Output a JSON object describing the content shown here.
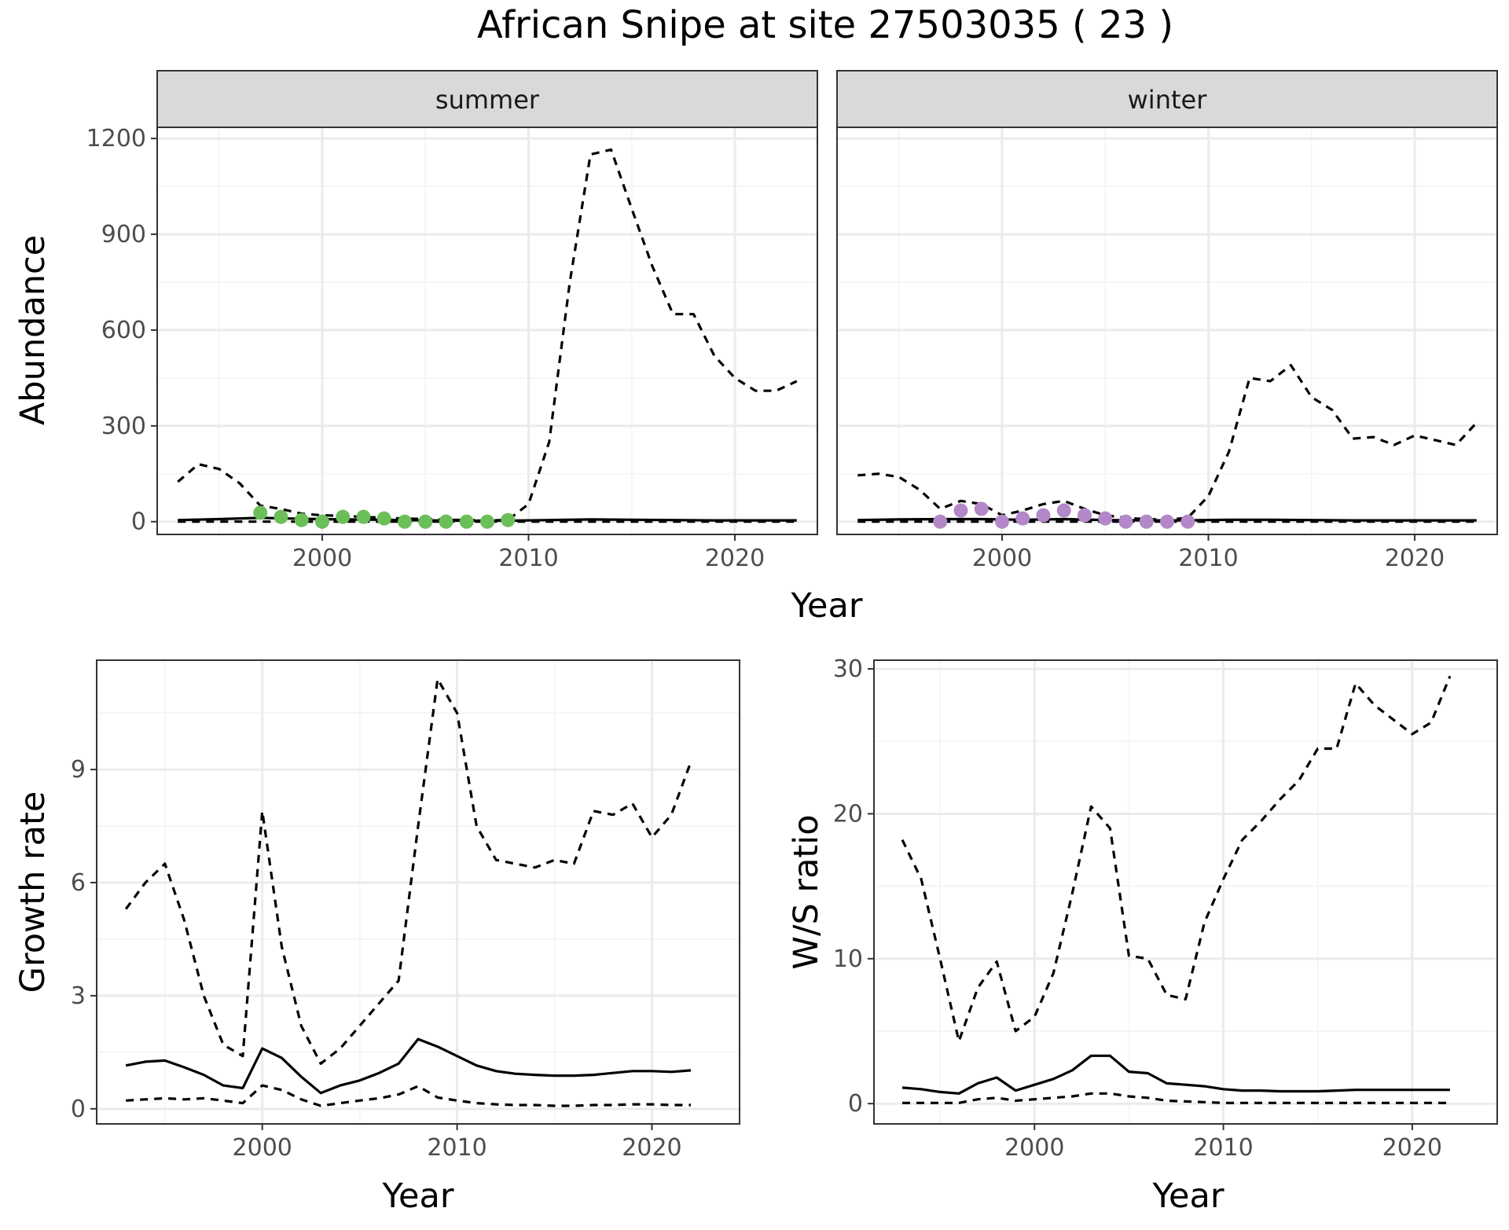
{
  "title": "African Snipe at site 27503035 ( 23 )",
  "colors": {
    "summer_points": "#6BBF59",
    "winter_points": "#B388C9",
    "line": "#000000",
    "strip_bg": "#D9D9D9",
    "grid_major": "#EBEBEB",
    "grid_minor": "#F5F5F5"
  },
  "chart_data": [
    {
      "id": "abundance",
      "type": "line",
      "facets": [
        "summer",
        "winter"
      ],
      "xlabel": "Year",
      "ylabel": "Abundance",
      "xlim": [
        1992,
        2024
      ],
      "ylim": [
        -40,
        1235
      ],
      "xticks": [
        2000,
        2010,
        2020
      ],
      "yticks": [
        0,
        300,
        600,
        900,
        1200
      ],
      "grid": true,
      "panels": {
        "summer": {
          "mean": {
            "x": [
              1993,
              1995,
              1997,
              1999,
              2001,
              2003,
              2005,
              2007,
              2009,
              2011,
              2013,
              2015,
              2017,
              2019,
              2021,
              2023
            ],
            "y": [
              5,
              8,
              12,
              9,
              7,
              6,
              4,
              3,
              3,
              5,
              7,
              6,
              5,
              4,
              4,
              4
            ]
          },
          "lower": {
            "x": [
              1993,
              1996,
              1999,
              2002,
              2005,
              2008,
              2011,
              2014,
              2017,
              2020,
              2023
            ],
            "y": [
              0,
              0,
              0,
              0,
              0,
              0,
              0,
              0,
              0,
              0,
              0
            ]
          },
          "upper": {
            "x": [
              1993,
              1994,
              1995,
              1996,
              1997,
              1998,
              1999,
              2000,
              2001,
              2002,
              2003,
              2004,
              2005,
              2006,
              2007,
              2008,
              2009,
              2010,
              2011,
              2012,
              2013,
              2014,
              2015,
              2016,
              2017,
              2018,
              2019,
              2020,
              2021,
              2022,
              2023
            ],
            "y": [
              125,
              180,
              165,
              120,
              50,
              40,
              25,
              20,
              18,
              15,
              12,
              10,
              8,
              6,
              5,
              4,
              5,
              55,
              250,
              750,
              1150,
              1165,
              980,
              800,
              650,
              650,
              520,
              450,
              410,
              410,
              440
            ]
          },
          "points": {
            "x": [
              1997,
              1998,
              1999,
              2000,
              2001,
              2002,
              2003,
              2004,
              2005,
              2006,
              2007,
              2008,
              2009
            ],
            "y": [
              28,
              15,
              5,
              0,
              15,
              15,
              10,
              0,
              0,
              0,
              0,
              0,
              5
            ]
          }
        },
        "winter": {
          "mean": {
            "x": [
              1993,
              1995,
              1997,
              1999,
              2001,
              2003,
              2005,
              2007,
              2009,
              2011,
              2013,
              2015,
              2017,
              2019,
              2021,
              2023
            ],
            "y": [
              5,
              7,
              8,
              8,
              6,
              8,
              5,
              4,
              4,
              6,
              6,
              5,
              4,
              4,
              4,
              4
            ]
          },
          "lower": {
            "x": [
              1993,
              1996,
              1999,
              2002,
              2005,
              2008,
              2011,
              2014,
              2017,
              2020,
              2023
            ],
            "y": [
              0,
              0,
              0,
              0,
              0,
              0,
              0,
              0,
              0,
              0,
              0
            ]
          },
          "upper": {
            "x": [
              1993,
              1994,
              1995,
              1996,
              1997,
              1998,
              1999,
              2000,
              2001,
              2002,
              2003,
              2004,
              2005,
              2006,
              2007,
              2008,
              2009,
              2010,
              2011,
              2012,
              2013,
              2014,
              2015,
              2016,
              2017,
              2018,
              2019,
              2020,
              2021,
              2022,
              2023
            ],
            "y": [
              145,
              150,
              140,
              100,
              40,
              65,
              55,
              20,
              35,
              55,
              65,
              40,
              20,
              12,
              8,
              6,
              12,
              80,
              220,
              450,
              440,
              490,
              390,
              350,
              260,
              265,
              240,
              270,
              255,
              240,
              310
            ]
          },
          "points": {
            "x": [
              1997,
              1998,
              1999,
              2000,
              2001,
              2002,
              2003,
              2004,
              2005,
              2006,
              2007,
              2008,
              2009
            ],
            "y": [
              0,
              35,
              40,
              0,
              10,
              20,
              35,
              20,
              10,
              0,
              0,
              0,
              0
            ]
          }
        }
      }
    },
    {
      "id": "growth",
      "type": "line",
      "xlabel": "Year",
      "ylabel": "Growth rate",
      "xlim": [
        1991.5,
        2024.5
      ],
      "ylim": [
        -0.4,
        11.9
      ],
      "xticks": [
        2000,
        2010,
        2020
      ],
      "yticks": [
        0,
        3,
        6,
        9
      ],
      "grid": true,
      "mean": {
        "x": [
          1993,
          1994,
          1995,
          1996,
          1997,
          1998,
          1999,
          2000,
          2001,
          2002,
          2003,
          2004,
          2005,
          2006,
          2007,
          2008,
          2009,
          2010,
          2011,
          2012,
          2013,
          2014,
          2015,
          2016,
          2017,
          2018,
          2019,
          2020,
          2021,
          2022
        ],
        "y": [
          1.15,
          1.25,
          1.28,
          1.1,
          0.9,
          0.62,
          0.55,
          1.6,
          1.35,
          0.85,
          0.42,
          0.62,
          0.75,
          0.95,
          1.2,
          1.85,
          1.65,
          1.4,
          1.15,
          1.0,
          0.93,
          0.9,
          0.88,
          0.88,
          0.9,
          0.95,
          1.0,
          1.0,
          0.98,
          1.02
        ]
      },
      "lower": {
        "x": [
          1993,
          1994,
          1995,
          1996,
          1997,
          1998,
          1999,
          2000,
          2001,
          2002,
          2003,
          2004,
          2005,
          2006,
          2007,
          2008,
          2009,
          2010,
          2011,
          2012,
          2013,
          2014,
          2015,
          2016,
          2017,
          2018,
          2019,
          2020,
          2021,
          2022
        ],
        "y": [
          0.22,
          0.25,
          0.28,
          0.25,
          0.28,
          0.22,
          0.15,
          0.62,
          0.5,
          0.25,
          0.08,
          0.15,
          0.22,
          0.28,
          0.38,
          0.6,
          0.3,
          0.22,
          0.15,
          0.12,
          0.1,
          0.1,
          0.08,
          0.08,
          0.1,
          0.1,
          0.12,
          0.12,
          0.1,
          0.1
        ]
      },
      "upper": {
        "x": [
          1993,
          1994,
          1995,
          1996,
          1997,
          1998,
          1999,
          2000,
          2001,
          2002,
          2003,
          2004,
          2005,
          2006,
          2007,
          2008,
          2009,
          2010,
          2011,
          2012,
          2013,
          2014,
          2015,
          2016,
          2017,
          2018,
          2019,
          2020,
          2021,
          2022
        ],
        "y": [
          5.3,
          6.0,
          6.5,
          5.0,
          3.0,
          1.7,
          1.4,
          7.9,
          4.3,
          2.2,
          1.2,
          1.6,
          2.2,
          2.8,
          3.4,
          7.5,
          11.4,
          10.5,
          7.5,
          6.6,
          6.5,
          6.4,
          6.6,
          6.5,
          7.9,
          7.8,
          8.1,
          7.2,
          7.8,
          9.2
        ]
      }
    },
    {
      "id": "ratio",
      "type": "line",
      "xlabel": "Year",
      "ylabel": "W/S ratio",
      "xlim": [
        1991.5,
        2024.5
      ],
      "ylim": [
        -1.4,
        30.6
      ],
      "xticks": [
        2000,
        2010,
        2020
      ],
      "yticks": [
        0,
        10,
        20,
        30
      ],
      "grid": true,
      "mean": {
        "x": [
          1993,
          1994,
          1995,
          1996,
          1997,
          1998,
          1999,
          2000,
          2001,
          2002,
          2003,
          2004,
          2005,
          2006,
          2007,
          2008,
          2009,
          2010,
          2011,
          2012,
          2013,
          2014,
          2015,
          2016,
          2017,
          2018,
          2019,
          2020,
          2021,
          2022
        ],
        "y": [
          1.1,
          1.0,
          0.8,
          0.7,
          1.4,
          1.8,
          0.9,
          1.3,
          1.7,
          2.3,
          3.3,
          3.3,
          2.2,
          2.1,
          1.4,
          1.3,
          1.2,
          1.0,
          0.9,
          0.9,
          0.85,
          0.85,
          0.85,
          0.9,
          0.95,
          0.95,
          0.95,
          0.95,
          0.95,
          0.95
        ]
      },
      "lower": {
        "x": [
          1993,
          1994,
          1995,
          1996,
          1997,
          1998,
          1999,
          2000,
          2001,
          2002,
          2003,
          2004,
          2005,
          2006,
          2007,
          2008,
          2009,
          2010,
          2011,
          2012,
          2013,
          2014,
          2015,
          2016,
          2017,
          2018,
          2019,
          2020,
          2021,
          2022
        ],
        "y": [
          0.05,
          0.05,
          0.05,
          0.05,
          0.3,
          0.4,
          0.2,
          0.3,
          0.4,
          0.5,
          0.7,
          0.7,
          0.5,
          0.4,
          0.2,
          0.15,
          0.1,
          0.05,
          0.05,
          0.05,
          0.05,
          0.05,
          0.05,
          0.05,
          0.05,
          0.05,
          0.05,
          0.05,
          0.05,
          0.05
        ]
      },
      "upper": {
        "x": [
          1993,
          1994,
          1995,
          1996,
          1997,
          1998,
          1999,
          2000,
          2001,
          2002,
          2003,
          2004,
          2005,
          2006,
          2007,
          2008,
          2009,
          2010,
          2011,
          2012,
          2013,
          2014,
          2015,
          2016,
          2017,
          2018,
          2019,
          2020,
          2021,
          2022
        ],
        "y": [
          18.2,
          15.5,
          10.0,
          4.3,
          8.0,
          9.8,
          5.0,
          6.0,
          9.0,
          14.5,
          20.5,
          19.0,
          10.2,
          10.0,
          7.5,
          7.2,
          12.5,
          15.5,
          18.2,
          19.5,
          21.0,
          22.3,
          24.5,
          24.5,
          29.0,
          27.5,
          26.5,
          25.5,
          26.3,
          29.5
        ]
      }
    }
  ]
}
